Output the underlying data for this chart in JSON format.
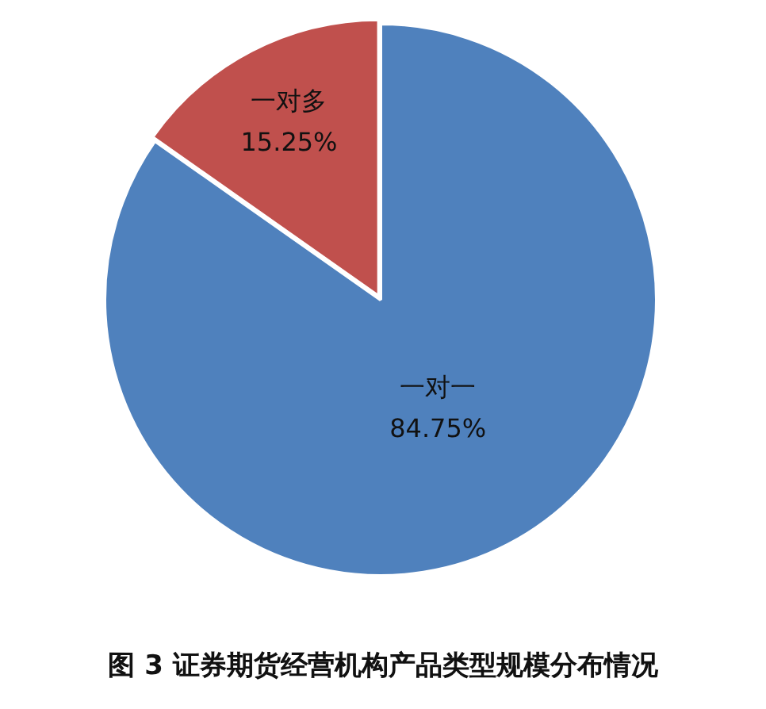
{
  "chart_data": {
    "type": "pie",
    "title": "图 3 证券期货经营机构产品类型规模分布情况",
    "categories": [
      "一对一",
      "一对多"
    ],
    "values": [
      84.75,
      15.25
    ],
    "colors": [
      "#4f81bd",
      "#c0504d"
    ],
    "value_labels": [
      "84.75%",
      "15.25%"
    ],
    "legend": false
  }
}
